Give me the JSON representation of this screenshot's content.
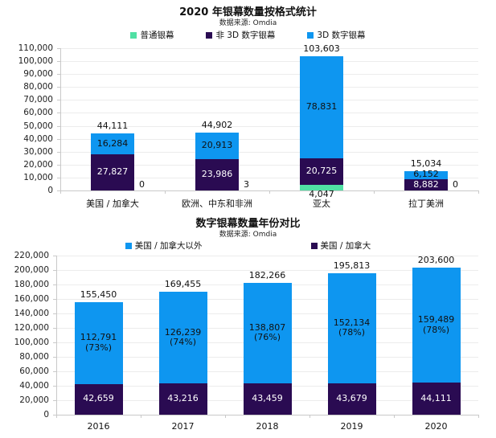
{
  "page": {
    "background": "#ffffff"
  },
  "colors": {
    "regular_screen": "#50e0a4",
    "non3d_digital": "#2a0b52",
    "digital_3d": "#0e96f0",
    "grid": "#ececec",
    "axis": "#c9c9c9"
  },
  "chart_data": [
    {
      "type": "bar",
      "stacked": true,
      "title": "2020 年银幕数量按格式统计",
      "source": "数据来源: Omdia",
      "xlabel": "",
      "ylabel": "",
      "ylim": [
        0,
        110000
      ],
      "ystep": 10000,
      "grid": true,
      "legend_position": "top",
      "legend": [
        {
          "label": "普通银幕",
          "color": "#50e0a4"
        },
        {
          "label": "非 3D 数字银幕",
          "color": "#2a0b52"
        },
        {
          "label": "3D 数字银幕",
          "color": "#0e96f0"
        }
      ],
      "categories": [
        "美国 / 加拿大",
        "欧洲、中东和非洲",
        "亚太",
        "拉丁美洲"
      ],
      "series": [
        {
          "name": "普通银幕",
          "color": "#50e0a4",
          "label_color": "#111111",
          "values": [
            0,
            3,
            4047,
            0
          ],
          "labels": [
            "0",
            "3",
            "4,047",
            "0"
          ],
          "label_pos": [
            "right",
            "right",
            "below",
            "right"
          ]
        },
        {
          "name": "非 3D 数字银幕",
          "color": "#2a0b52",
          "label_color": "#ffffff",
          "values": [
            27827,
            23986,
            20725,
            8882
          ],
          "labels": [
            "27,827",
            "23,986",
            "20,725",
            "8,882"
          ],
          "label_pos": [
            "inside",
            "inside",
            "inside",
            "inside"
          ]
        },
        {
          "name": "3D 数字银幕",
          "color": "#0e96f0",
          "label_color": "#111111",
          "values": [
            16284,
            20913,
            78831,
            6152
          ],
          "labels": [
            "16,284",
            "20,913",
            "78,831",
            "6,152"
          ],
          "label_pos": [
            "inside",
            "inside",
            "inside",
            "inside"
          ]
        }
      ],
      "totals": {
        "values": [
          44111,
          44902,
          103603,
          15034
        ],
        "labels": [
          "44,111",
          "44,902",
          "103,603",
          "15,034"
        ]
      }
    },
    {
      "type": "bar",
      "stacked": true,
      "title": "数字银幕数量年份对比",
      "source": "数据来源: Omdia",
      "xlabel": "",
      "ylabel": "",
      "ylim": [
        0,
        220000
      ],
      "ystep": 20000,
      "grid": true,
      "legend_position": "top",
      "legend": [
        {
          "label": "美国 / 加拿大以外",
          "color": "#0e96f0"
        },
        {
          "label": "美国 / 加拿大",
          "color": "#2a0b52"
        }
      ],
      "categories": [
        "2016",
        "2017",
        "2018",
        "2019",
        "2020"
      ],
      "series": [
        {
          "name": "美国 / 加拿大",
          "color": "#2a0b52",
          "label_color": "#ffffff",
          "values": [
            42659,
            43216,
            43459,
            43679,
            44111
          ],
          "labels": [
            "42,659",
            "43,216",
            "43,459",
            "43,679",
            "44,111"
          ],
          "label_pos": [
            "inside",
            "inside",
            "inside",
            "inside",
            "inside"
          ]
        },
        {
          "name": "美国 / 加拿大以外",
          "color": "#0e96f0",
          "label_color": "#111111",
          "values": [
            112791,
            126239,
            138807,
            152134,
            159489
          ],
          "labels": [
            "112,791",
            "126,239",
            "138,807",
            "152,134",
            "159,489"
          ],
          "sublabels": [
            "(73%)",
            "(74%)",
            "(76%)",
            "(78%)",
            "(78%)"
          ],
          "label_pos": [
            "inside",
            "inside",
            "inside",
            "inside",
            "inside"
          ]
        }
      ],
      "totals": {
        "values": [
          155450,
          169455,
          182266,
          195813,
          203600
        ],
        "labels": [
          "155,450",
          "169,455",
          "182,266",
          "195,813",
          "203,600"
        ]
      }
    }
  ]
}
